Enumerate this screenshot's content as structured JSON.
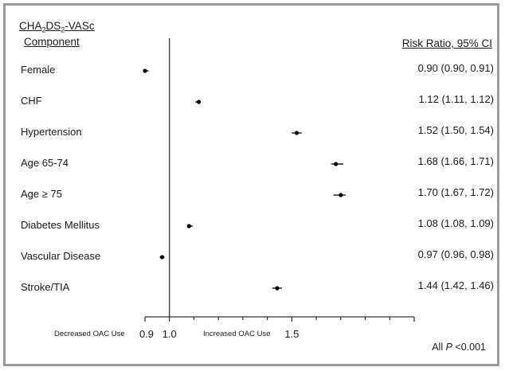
{
  "chart_data": {
    "type": "forest",
    "header_component_line1_parts": [
      "CHA",
      "2",
      "DS",
      "2",
      "-VASc"
    ],
    "header_component_line2": "Component",
    "header_ratio": "Risk Ratio, 95% CI",
    "rows": [
      {
        "label": "Female",
        "estimate": 0.9,
        "lower": 0.9,
        "upper": 0.91,
        "ci_text": "0.90 (0.90, 0.91)"
      },
      {
        "label": "CHF",
        "estimate": 1.12,
        "lower": 1.11,
        "upper": 1.12,
        "ci_text": "1.12 (1.11, 1.12)"
      },
      {
        "label": "Hypertension",
        "estimate": 1.52,
        "lower": 1.5,
        "upper": 1.54,
        "ci_text": "1.52 (1.50, 1.54)"
      },
      {
        "label": "Age 65-74",
        "estimate": 1.68,
        "lower": 1.66,
        "upper": 1.71,
        "ci_text": "1.68 (1.66, 1.71)"
      },
      {
        "label": "Age ≥ 75",
        "estimate": 1.7,
        "lower": 1.67,
        "upper": 1.72,
        "ci_text": "1.70 (1.67, 1.72)"
      },
      {
        "label": "Diabetes Mellitus",
        "estimate": 1.08,
        "lower": 1.08,
        "upper": 1.09,
        "ci_text": "1.08 (1.08, 1.09)"
      },
      {
        "label": "Vascular Disease",
        "estimate": 0.97,
        "lower": 0.96,
        "upper": 0.98,
        "ci_text": "0.97 (0.96, 0.98)"
      },
      {
        "label": "Stroke/TIA",
        "estimate": 1.44,
        "lower": 1.42,
        "upper": 1.46,
        "ci_text": "1.44 (1.42, 1.46)"
      }
    ],
    "x_ticks": [
      0.9,
      1.0,
      1.5
    ],
    "x_tick_labels": [
      "0.9",
      "1.0",
      "1.5"
    ],
    "xlim": [
      0.9,
      2.0
    ],
    "reference_line": 1.0,
    "left_annotation": "Decreased OAC Use",
    "right_annotation": "Increased OAC Use",
    "footnote_prefix": "All ",
    "footnote_italic": "P",
    "footnote_suffix": " <0.001"
  },
  "colors": {
    "frame": "#9a9a9a",
    "text": "#1a1a1a",
    "marker": "#000000"
  }
}
